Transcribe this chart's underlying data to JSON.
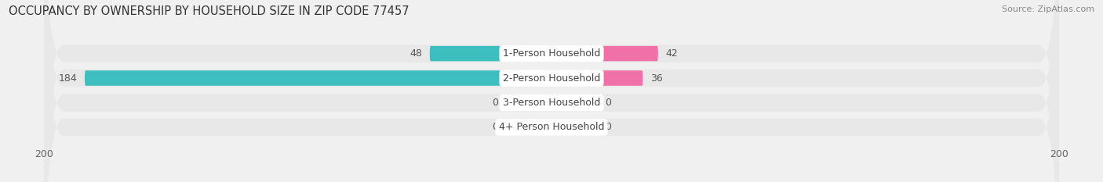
{
  "title": "OCCUPANCY BY OWNERSHIP BY HOUSEHOLD SIZE IN ZIP CODE 77457",
  "source": "Source: ZipAtlas.com",
  "categories": [
    "1-Person Household",
    "2-Person Household",
    "3-Person Household",
    "4+ Person Household"
  ],
  "owner_values": [
    48,
    184,
    0,
    0
  ],
  "renter_values": [
    42,
    36,
    0,
    0
  ],
  "owner_color": "#3dbfbf",
  "renter_color": "#f070a8",
  "owner_stub_color": "#a0dede",
  "renter_stub_color": "#f9b8d4",
  "axis_max": 200,
  "background_color": "#f0f0f0",
  "row_bg_color": "#e8e8e8",
  "title_fontsize": 10.5,
  "source_fontsize": 8,
  "legend_fontsize": 9,
  "value_fontsize": 9,
  "cat_fontsize": 9,
  "bar_height": 0.62,
  "stub_size": 18
}
